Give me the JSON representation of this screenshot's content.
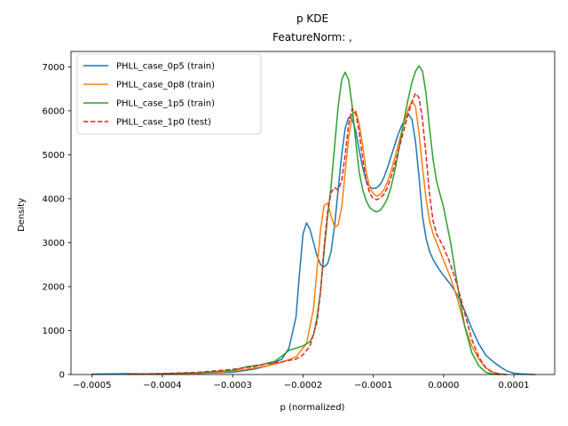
{
  "chart_data": {
    "type": "line",
    "title": "p KDE",
    "subtitle": "FeatureNorm: ,",
    "xlabel": "p (normalized)",
    "ylabel": "Density",
    "xlim": [
      -0.00053,
      0.000158
    ],
    "ylim": [
      0,
      7350
    ],
    "x_ticks": [
      -0.0005,
      -0.0004,
      -0.0003,
      -0.0002,
      -0.0001,
      0.0,
      0.0001
    ],
    "x_tick_labels": [
      "−0.0005",
      "−0.0004",
      "−0.0003",
      "−0.0002",
      "−0.0001",
      "0.0000",
      "0.0001"
    ],
    "y_ticks": [
      0,
      1000,
      2000,
      3000,
      4000,
      5000,
      6000,
      7000
    ],
    "y_tick_labels": [
      "0",
      "1000",
      "2000",
      "3000",
      "4000",
      "5000",
      "6000",
      "7000"
    ],
    "grid": false,
    "legend_position": "top-left",
    "series": [
      {
        "name": "PHLL_case_0p5 (train)",
        "color": "#1f77b4",
        "dash": "solid",
        "points": [
          [
            -0.0005,
            10
          ],
          [
            -0.00045,
            20
          ],
          [
            -0.0004,
            10
          ],
          [
            -0.00035,
            25
          ],
          [
            -0.0003,
            50
          ],
          [
            -0.00027,
            120
          ],
          [
            -0.00025,
            200
          ],
          [
            -0.00023,
            350
          ],
          [
            -0.00022,
            600
          ],
          [
            -0.00021,
            1300
          ],
          [
            -0.000205,
            2300
          ],
          [
            -0.0002,
            3200
          ],
          [
            -0.000195,
            3450
          ],
          [
            -0.00019,
            3300
          ],
          [
            -0.000185,
            3000
          ],
          [
            -0.00018,
            2700
          ],
          [
            -0.000175,
            2500
          ],
          [
            -0.00017,
            2450
          ],
          [
            -0.000165,
            2520
          ],
          [
            -0.00016,
            2800
          ],
          [
            -0.000155,
            3400
          ],
          [
            -0.00015,
            4200
          ],
          [
            -0.000145,
            5000
          ],
          [
            -0.00014,
            5600
          ],
          [
            -0.000135,
            5850
          ],
          [
            -0.00013,
            5800
          ],
          [
            -0.000125,
            5550
          ],
          [
            -0.00012,
            5100
          ],
          [
            -0.000115,
            4700
          ],
          [
            -0.00011,
            4400
          ],
          [
            -0.000105,
            4270
          ],
          [
            -0.0001,
            4230
          ],
          [
            -9.5e-05,
            4250
          ],
          [
            -9e-05,
            4330
          ],
          [
            -8.5e-05,
            4480
          ],
          [
            -8e-05,
            4700
          ],
          [
            -7.5e-05,
            4950
          ],
          [
            -7e-05,
            5200
          ],
          [
            -6.5e-05,
            5450
          ],
          [
            -6e-05,
            5650
          ],
          [
            -5.5e-05,
            5800
          ],
          [
            -5e-05,
            5920
          ],
          [
            -4.5e-05,
            5800
          ],
          [
            -4e-05,
            5300
          ],
          [
            -3.5e-05,
            4500
          ],
          [
            -3e-05,
            3600
          ],
          [
            -2.5e-05,
            3100
          ],
          [
            -2e-05,
            2800
          ],
          [
            -1.5e-05,
            2620
          ],
          [
            -1e-05,
            2480
          ],
          [
            -5e-06,
            2360
          ],
          [
            0.0,
            2250
          ],
          [
            1e-05,
            2050
          ],
          [
            2e-05,
            1800
          ],
          [
            3e-05,
            1450
          ],
          [
            4e-05,
            1050
          ],
          [
            5e-05,
            700
          ],
          [
            6e-05,
            440
          ],
          [
            7e-05,
            300
          ],
          [
            8e-05,
            180
          ],
          [
            9e-05,
            80
          ],
          [
            0.0001,
            30
          ],
          [
            0.00011,
            15
          ],
          [
            0.00013,
            0
          ]
        ]
      },
      {
        "name": "PHLL_case_0p8 (train)",
        "color": "#ff7f0e",
        "dash": "solid",
        "points": [
          [
            -0.00045,
            10
          ],
          [
            -0.0004,
            15
          ],
          [
            -0.00035,
            30
          ],
          [
            -0.00031,
            60
          ],
          [
            -0.00028,
            120
          ],
          [
            -0.00025,
            200
          ],
          [
            -0.00023,
            280
          ],
          [
            -0.00021,
            400
          ],
          [
            -0.000195,
            700
          ],
          [
            -0.000185,
            1500
          ],
          [
            -0.00018,
            2400
          ],
          [
            -0.000175,
            3300
          ],
          [
            -0.00017,
            3850
          ],
          [
            -0.000165,
            3900
          ],
          [
            -0.00016,
            3600
          ],
          [
            -0.000155,
            3350
          ],
          [
            -0.00015,
            3400
          ],
          [
            -0.000145,
            3800
          ],
          [
            -0.00014,
            4600
          ],
          [
            -0.000135,
            5400
          ],
          [
            -0.00013,
            5900
          ],
          [
            -0.000125,
            6000
          ],
          [
            -0.00012,
            5700
          ],
          [
            -0.000115,
            5200
          ],
          [
            -0.00011,
            4600
          ],
          [
            -0.000105,
            4250
          ],
          [
            -0.0001,
            4110
          ],
          [
            -9.5e-05,
            4060
          ],
          [
            -9e-05,
            4100
          ],
          [
            -8.5e-05,
            4200
          ],
          [
            -8e-05,
            4380
          ],
          [
            -7.5e-05,
            4620
          ],
          [
            -7e-05,
            4900
          ],
          [
            -6.5e-05,
            5200
          ],
          [
            -6e-05,
            5500
          ],
          [
            -5.5e-05,
            5800
          ],
          [
            -5e-05,
            6050
          ],
          [
            -4.5e-05,
            6220
          ],
          [
            -4e-05,
            6100
          ],
          [
            -3.5e-05,
            5500
          ],
          [
            -3e-05,
            4700
          ],
          [
            -2.5e-05,
            4000
          ],
          [
            -2e-05,
            3500
          ],
          [
            -1.5e-05,
            3200
          ],
          [
            -1e-05,
            3000
          ],
          [
            0.0,
            2600
          ],
          [
            1e-05,
            2200
          ],
          [
            2e-05,
            1700
          ],
          [
            3e-05,
            1100
          ],
          [
            4e-05,
            650
          ],
          [
            5e-05,
            350
          ],
          [
            6e-05,
            150
          ],
          [
            7e-05,
            50
          ],
          [
            8e-05,
            15
          ],
          [
            9e-05,
            0
          ]
        ]
      },
      {
        "name": "PHLL_case_1p5 (train)",
        "color": "#2ca02c",
        "dash": "solid",
        "points": [
          [
            -0.00045,
            10
          ],
          [
            -0.0004,
            20
          ],
          [
            -0.00035,
            40
          ],
          [
            -0.0003,
            90
          ],
          [
            -0.00028,
            180
          ],
          [
            -0.00026,
            220
          ],
          [
            -0.00024,
            300
          ],
          [
            -0.00023,
            420
          ],
          [
            -0.00022,
            550
          ],
          [
            -0.00021,
            600
          ],
          [
            -0.0002,
            650
          ],
          [
            -0.00019,
            750
          ],
          [
            -0.000185,
            900
          ],
          [
            -0.00018,
            1300
          ],
          [
            -0.000175,
            1900
          ],
          [
            -0.00017,
            2800
          ],
          [
            -0.000165,
            3600
          ],
          [
            -0.00016,
            4300
          ],
          [
            -0.000155,
            5200
          ],
          [
            -0.00015,
            6100
          ],
          [
            -0.000145,
            6700
          ],
          [
            -0.00014,
            6880
          ],
          [
            -0.000135,
            6700
          ],
          [
            -0.00013,
            6100
          ],
          [
            -0.000125,
            5300
          ],
          [
            -0.00012,
            4600
          ],
          [
            -0.000115,
            4200
          ],
          [
            -0.00011,
            3950
          ],
          [
            -0.000105,
            3800
          ],
          [
            -0.0001,
            3730
          ],
          [
            -9.5e-05,
            3700
          ],
          [
            -9e-05,
            3740
          ],
          [
            -8.5e-05,
            3850
          ],
          [
            -8e-05,
            4000
          ],
          [
            -7.5e-05,
            4250
          ],
          [
            -7e-05,
            4600
          ],
          [
            -6.5e-05,
            5000
          ],
          [
            -6e-05,
            5450
          ],
          [
            -5.5e-05,
            5900
          ],
          [
            -5e-05,
            6300
          ],
          [
            -4.5e-05,
            6650
          ],
          [
            -4e-05,
            6900
          ],
          [
            -3.5e-05,
            7020
          ],
          [
            -3e-05,
            6900
          ],
          [
            -2.5e-05,
            6400
          ],
          [
            -2e-05,
            5600
          ],
          [
            -1.5e-05,
            4900
          ],
          [
            -1e-05,
            4400
          ],
          [
            -5e-06,
            4100
          ],
          [
            0.0,
            3800
          ],
          [
            1e-05,
            3000
          ],
          [
            2e-05,
            2000
          ],
          [
            3e-05,
            1100
          ],
          [
            4e-05,
            500
          ],
          [
            5e-05,
            200
          ],
          [
            6e-05,
            50
          ],
          [
            7e-05,
            10
          ],
          [
            8e-05,
            0
          ]
        ]
      },
      {
        "name": "PHLL_case_1p0 (test)",
        "color": "#d62728",
        "dash": "dashed",
        "points": [
          [
            -0.00045,
            10
          ],
          [
            -0.0004,
            20
          ],
          [
            -0.00035,
            50
          ],
          [
            -0.00032,
            90
          ],
          [
            -0.0003,
            120
          ],
          [
            -0.00027,
            180
          ],
          [
            -0.00025,
            250
          ],
          [
            -0.00023,
            290
          ],
          [
            -0.00021,
            350
          ],
          [
            -0.0002,
            450
          ],
          [
            -0.00019,
            650
          ],
          [
            -0.00018,
            1200
          ],
          [
            -0.000175,
            1900
          ],
          [
            -0.00017,
            2900
          ],
          [
            -0.000165,
            3700
          ],
          [
            -0.00016,
            4150
          ],
          [
            -0.000155,
            4250
          ],
          [
            -0.00015,
            4200
          ],
          [
            -0.000145,
            4400
          ],
          [
            -0.00014,
            5000
          ],
          [
            -0.000135,
            5700
          ],
          [
            -0.00013,
            6050
          ],
          [
            -0.000125,
            5950
          ],
          [
            -0.00012,
            5500
          ],
          [
            -0.000115,
            4900
          ],
          [
            -0.00011,
            4400
          ],
          [
            -0.000105,
            4120
          ],
          [
            -0.0001,
            4000
          ],
          [
            -9.5e-05,
            3980
          ],
          [
            -9e-05,
            4020
          ],
          [
            -8.5e-05,
            4100
          ],
          [
            -8e-05,
            4250
          ],
          [
            -7.5e-05,
            4480
          ],
          [
            -7e-05,
            4750
          ],
          [
            -6.5e-05,
            5050
          ],
          [
            -6e-05,
            5350
          ],
          [
            -5.5e-05,
            5650
          ],
          [
            -5e-05,
            5950
          ],
          [
            -4.5e-05,
            6200
          ],
          [
            -4e-05,
            6400
          ],
          [
            -3.5e-05,
            6300
          ],
          [
            -3e-05,
            5800
          ],
          [
            -2.5e-05,
            5000
          ],
          [
            -2e-05,
            4100
          ],
          [
            -1.5e-05,
            3500
          ],
          [
            -1e-05,
            3200
          ],
          [
            0.0,
            2900
          ],
          [
            1e-05,
            2500
          ],
          [
            2e-05,
            2000
          ],
          [
            3e-05,
            1400
          ],
          [
            4e-05,
            800
          ],
          [
            5e-05,
            400
          ],
          [
            6e-05,
            150
          ],
          [
            7e-05,
            50
          ],
          [
            8e-05,
            10
          ],
          [
            9e-05,
            0
          ]
        ]
      }
    ]
  }
}
